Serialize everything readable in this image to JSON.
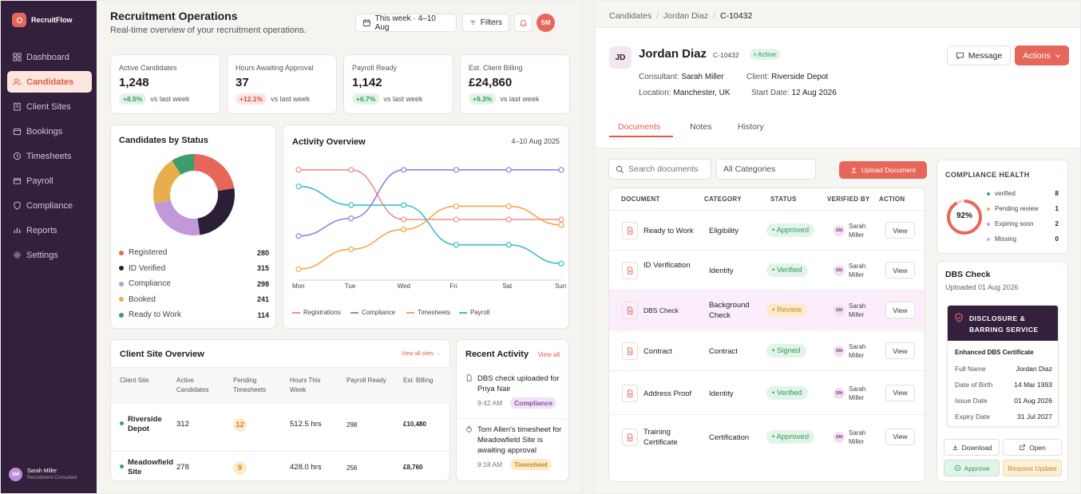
{
  "app": {
    "name": "RecruitFlow"
  },
  "sidebar": {
    "items": [
      {
        "label": "Dashboard",
        "icon": "dashboard-icon"
      },
      {
        "label": "Candidates",
        "icon": "candidates-icon",
        "active": true
      },
      {
        "label": "Client Sites",
        "icon": "building-icon"
      },
      {
        "label": "Bookings",
        "icon": "calendar-icon"
      },
      {
        "label": "Timesheets",
        "icon": "clock-icon"
      },
      {
        "label": "Payroll",
        "icon": "wallet-icon"
      },
      {
        "label": "Compliance",
        "icon": "shield-icon"
      },
      {
        "label": "Reports",
        "icon": "bar-chart-icon"
      },
      {
        "label": "Settings",
        "icon": "gear-icon"
      }
    ],
    "user": {
      "initials": "SM",
      "name": "Sarah Miller",
      "role": "Recruitment Consultant"
    }
  },
  "header": {
    "title": "Recruitment Operations",
    "subtitle": "Real-time overview of your recruitment operations.",
    "date_range": "This week · 4–10 Aug",
    "filters_label": "Filters",
    "user_initials": "SM"
  },
  "kpis": [
    {
      "label": "Active Candidates",
      "value": "1,248",
      "change": "+8.5%",
      "trend": "up",
      "suffix": "vs last week"
    },
    {
      "label": "Hours Awaiting Approval",
      "value": "37",
      "change": "+12.1%",
      "trend": "down",
      "suffix": "vs last week"
    },
    {
      "label": "Payroll Ready",
      "value": "1,142",
      "change": "+6.7%",
      "trend": "up",
      "suffix": "vs last week"
    },
    {
      "label": "Est. Client Billing",
      "value": "£24,860",
      "change": "+9.3%",
      "trend": "up",
      "suffix": "vs last week"
    }
  ],
  "status_card": {
    "title": "Candidates by Status"
  },
  "activity_card": {
    "title": "Activity Overview",
    "range": "4–10 Aug 2025"
  },
  "chart_data": [
    {
      "type": "pie",
      "title": "Candidates by Status",
      "categories": [
        "Registered",
        "ID Verified",
        "Compliance",
        "Booked",
        "Ready to Work"
      ],
      "values": [
        280,
        315,
        298,
        241,
        114
      ],
      "colors": [
        "#e7665a",
        "#2b1f36",
        "#c199d8",
        "#e8ad4c",
        "#3d9d6a"
      ]
    },
    {
      "type": "line",
      "title": "Activity Overview",
      "x": [
        "Mon",
        "Tue",
        "Wed",
        "Fri",
        "Sat",
        "Sun"
      ],
      "series": [
        {
          "name": "Registrations",
          "color": "#ef8f88",
          "values": [
            100,
            100,
            55,
            55,
            55,
            55
          ]
        },
        {
          "name": "Compliance",
          "color": "#9b7be0",
          "values": [
            40,
            56,
            100,
            100,
            100,
            100
          ]
        },
        {
          "name": "Timesheets",
          "color": "#f2a647",
          "values": [
            10,
            28,
            46,
            67,
            67,
            50
          ]
        },
        {
          "name": "Payroll",
          "color": "#3bbcd0",
          "values": [
            85,
            68,
            68,
            32,
            32,
            15
          ]
        }
      ],
      "ylim": [
        0,
        110
      ],
      "legend": "bottom"
    }
  ],
  "client_sites": {
    "title": "Client Site Overview",
    "view_all": "View all sites →",
    "columns": [
      "Client Site",
      "Active Candidates",
      "Pending Timesheets",
      "Hours This Week",
      "Payroll Ready",
      "Est. Billing"
    ],
    "rows": [
      {
        "site": "Riverside Depot",
        "active": "312",
        "pending": "12",
        "hours": "512.5 hrs",
        "payroll": "298",
        "billing": "£10,480"
      },
      {
        "site": "Meadowfield Site",
        "active": "278",
        "pending": "9",
        "hours": "428.0 hrs",
        "payroll": "256",
        "billing": "£8,760"
      }
    ]
  },
  "recent_activity": {
    "title": "Recent Activity",
    "view_all": "View all",
    "items": [
      {
        "text": "DBS check uploaded for Priya Nair",
        "time": "9:42 AM",
        "tag": "Compliance"
      },
      {
        "text": "Tom Allen's timesheet for Meadowfield Site is awaiting approval",
        "time": "9:18 AM",
        "tag": "Timesheet"
      }
    ]
  },
  "candidate": {
    "breadcrumb": [
      "Candidates",
      "Jordan Diaz",
      "C-10432"
    ],
    "initials": "JD",
    "name": "Jordan Diaz",
    "id": "C-10432",
    "status": "• Active",
    "consultant_label": "Consultant:",
    "consultant": "Sarah Miller",
    "client_label": "Client:",
    "client": "Riverside Depot",
    "location_label": "Location:",
    "location": "Manchester, UK",
    "start_label": "Start Date:",
    "start": "12 Aug 2026",
    "message_label": "Message",
    "actions_label": "Actions",
    "tabs": [
      "Documents",
      "Notes",
      "History"
    ]
  },
  "documents": {
    "search_placeholder": "Search documents",
    "category_select": "All Categories",
    "upload_label": "Upload Document",
    "columns": [
      "DOCUMENT",
      "CATEGORY",
      "STATUS",
      "VERIFIED BY",
      "ACTION"
    ],
    "rows": [
      {
        "name": "Ready to Work",
        "category": "Eligibility",
        "status": "• Approved",
        "tone": "green",
        "verifier": "Sarah Miller",
        "verifier_initials": "SM",
        "action": "View"
      },
      {
        "name": "ID Verification",
        "category": "Identity",
        "status": "• Verified",
        "tone": "green",
        "verifier": "Sarah Miller",
        "verifier_initials": "SM",
        "action": "View"
      },
      {
        "name": "DBS Check",
        "category": "Background Check",
        "status": "• Review",
        "tone": "yellow",
        "verifier": "Sarah Miller",
        "verifier_initials": "SM",
        "action": "View"
      },
      {
        "name": "Contract",
        "category": "Contract",
        "status": "• Signed",
        "tone": "green",
        "verifier": "Sarah Miller",
        "verifier_initials": "SM",
        "action": "View"
      },
      {
        "name": "Address Proof",
        "category": "Identity",
        "status": "• Verified",
        "tone": "green",
        "verifier": "Sarah Miller",
        "verifier_initials": "SM",
        "action": "View"
      },
      {
        "name": "Training Certificate",
        "category": "Certification",
        "status": "• Approved",
        "tone": "green",
        "verifier": "Sarah Miller",
        "verifier_initials": "SM",
        "action": "View"
      }
    ]
  },
  "compliance_health": {
    "title": "COMPLIANCE HEALTH",
    "percent": 92,
    "percent_label": "92%",
    "rows": [
      {
        "label": "verified",
        "value": "8",
        "color": "#3d9d6a"
      },
      {
        "label": "Pending review",
        "value": "1",
        "color": "#e8ad4c"
      },
      {
        "label": "Expiring soon",
        "value": "2",
        "color": "#c199d8"
      },
      {
        "label": "Missing",
        "value": "0",
        "color": "#bbbbbb"
      }
    ]
  },
  "dbs_panel": {
    "title": "DBS Check",
    "uploaded": "Uploaded 01 Aug 2026",
    "banner": "DISCLOSURE & BARRING SERVICE",
    "cert_title": "Enhanced DBS Certificate",
    "fields": [
      {
        "label": "Full Name",
        "value": "Jordan Diaz"
      },
      {
        "label": "Date of Birth",
        "value": "14 Mar 1993"
      },
      {
        "label": "Issue Date",
        "value": "01 Aug 2026"
      },
      {
        "label": "Expiry Date",
        "value": "31 Jul 2027"
      }
    ],
    "download_label": "Download",
    "open_label": "Open",
    "approve_label": "Approve",
    "request_label": "Request Update"
  }
}
